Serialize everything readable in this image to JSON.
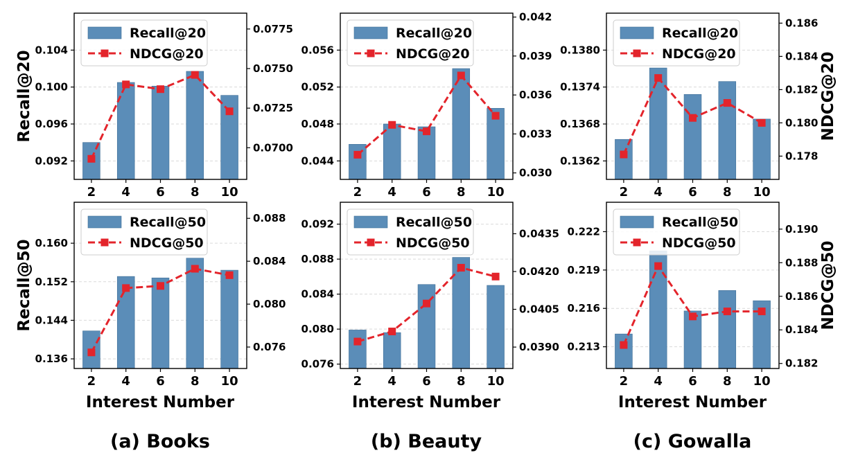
{
  "colors": {
    "bar": "#5b8db8",
    "bar_edge": "#3f6e96",
    "line": "#e3242b",
    "grid": "#d9d9d9"
  },
  "x_axis_label": "Interest Number",
  "captions": [
    "(a) Books",
    "(b) Beauty",
    "(c) Gowalla"
  ],
  "left_axis_titles": [
    "Recall@20",
    "Recall@50"
  ],
  "right_axis_titles": [
    "NDCG@20",
    "NDCG@50"
  ],
  "chart_data": [
    {
      "type": "bar+line",
      "dataset": "Books",
      "metric_k": 20,
      "x": [
        2,
        4,
        6,
        8,
        10
      ],
      "series": [
        {
          "name": "Recall@20",
          "kind": "bar",
          "axis": "left",
          "values": [
            0.094,
            0.1005,
            0.1001,
            0.1017,
            0.0991
          ]
        },
        {
          "name": "NDCG@20",
          "kind": "line",
          "axis": "right",
          "values": [
            0.0693,
            0.074,
            0.0737,
            0.0746,
            0.0723
          ]
        }
      ],
      "ylim_left": [
        0.09,
        0.108
      ],
      "yticks_left": [
        "0.092",
        "0.096",
        "0.100",
        "0.104"
      ],
      "ylim_right": [
        0.068,
        0.0785
      ],
      "yticks_right": [
        "0.0700",
        "0.0725",
        "0.0750",
        "0.0775"
      ],
      "xticks": [
        "2",
        "4",
        "6",
        "8",
        "10"
      ],
      "grid": true,
      "legend": "top-left"
    },
    {
      "type": "bar+line",
      "dataset": "Beauty",
      "metric_k": 20,
      "x": [
        2,
        4,
        6,
        8,
        10
      ],
      "series": [
        {
          "name": "Recall@20",
          "kind": "bar",
          "axis": "left",
          "values": [
            0.0458,
            0.048,
            0.0477,
            0.054,
            0.0497
          ]
        },
        {
          "name": "NDCG@20",
          "kind": "line",
          "axis": "right",
          "values": [
            0.0314,
            0.0337,
            0.0332,
            0.0375,
            0.0344
          ]
        }
      ],
      "ylim_left": [
        0.042,
        0.06
      ],
      "yticks_left": [
        "0.044",
        "0.048",
        "0.052",
        "0.056"
      ],
      "ylim_right": [
        0.0295,
        0.0423
      ],
      "yticks_right": [
        "0.030",
        "0.033",
        "0.036",
        "0.039",
        "0.042"
      ],
      "xticks": [
        "2",
        "4",
        "6",
        "8",
        "10"
      ],
      "grid": true,
      "legend": "top-left"
    },
    {
      "type": "bar+line",
      "dataset": "Gowalla",
      "metric_k": 20,
      "x": [
        2,
        4,
        6,
        8,
        10
      ],
      "series": [
        {
          "name": "Recall@20",
          "kind": "bar",
          "axis": "left",
          "values": [
            0.13655,
            0.13771,
            0.13728,
            0.13749,
            0.13688
          ]
        },
        {
          "name": "NDCG@20",
          "kind": "line",
          "axis": "right",
          "values": [
            0.1781,
            0.1827,
            0.1803,
            0.1812,
            0.18
          ]
        }
      ],
      "ylim_left": [
        0.1359,
        0.1386
      ],
      "yticks_left": [
        "0.1362",
        "0.1368",
        "0.1374",
        "0.1380"
      ],
      "ylim_right": [
        0.1766,
        0.1866
      ],
      "yticks_right": [
        "0.178",
        "0.180",
        "0.182",
        "0.184",
        "0.186"
      ],
      "xticks": [
        "2",
        "4",
        "6",
        "8",
        "10"
      ],
      "grid": true,
      "legend": "top-left"
    },
    {
      "type": "bar+line",
      "dataset": "Books",
      "metric_k": 50,
      "x": [
        2,
        4,
        6,
        8,
        10
      ],
      "series": [
        {
          "name": "Recall@50",
          "kind": "bar",
          "axis": "left",
          "values": [
            0.1418,
            0.1531,
            0.1528,
            0.1569,
            0.1544
          ]
        },
        {
          "name": "NDCG@50",
          "kind": "line",
          "axis": "right",
          "values": [
            0.0755,
            0.0815,
            0.0817,
            0.0833,
            0.0827
          ]
        }
      ],
      "ylim_left": [
        0.134,
        0.1685
      ],
      "yticks_left": [
        "0.136",
        "0.144",
        "0.152",
        "0.160"
      ],
      "ylim_right": [
        0.074,
        0.0895
      ],
      "yticks_right": [
        "0.076",
        "0.080",
        "0.084",
        "0.088"
      ],
      "xticks": [
        "2",
        "4",
        "6",
        "8",
        "10"
      ],
      "grid": true,
      "legend": "top-left"
    },
    {
      "type": "bar+line",
      "dataset": "Beauty",
      "metric_k": 50,
      "x": [
        2,
        4,
        6,
        8,
        10
      ],
      "series": [
        {
          "name": "Recall@50",
          "kind": "bar",
          "axis": "left",
          "values": [
            0.0799,
            0.0796,
            0.0851,
            0.0882,
            0.085
          ]
        },
        {
          "name": "NDCG@50",
          "kind": "line",
          "axis": "right",
          "values": [
            0.03922,
            0.03962,
            0.04073,
            0.04215,
            0.0418
          ]
        }
      ],
      "ylim_left": [
        0.0755,
        0.0945
      ],
      "yticks_left": [
        "0.076",
        "0.080",
        "0.084",
        "0.088",
        "0.092"
      ],
      "ylim_right": [
        0.03815,
        0.04475
      ],
      "yticks_right": [
        "0.0390",
        "0.0405",
        "0.0420",
        "0.0435"
      ],
      "xticks": [
        "2",
        "4",
        "6",
        "8",
        "10"
      ],
      "grid": true,
      "legend": "top-left"
    },
    {
      "type": "bar+line",
      "dataset": "Gowalla",
      "metric_k": 50,
      "x": [
        2,
        4,
        6,
        8,
        10
      ],
      "series": [
        {
          "name": "Recall@50",
          "kind": "bar",
          "axis": "left",
          "values": [
            0.214,
            0.2205,
            0.2158,
            0.2174,
            0.2166
          ]
        },
        {
          "name": "NDCG@50",
          "kind": "line",
          "axis": "right",
          "values": [
            0.1831,
            0.1878,
            0.1848,
            0.1851,
            0.1851
          ]
        }
      ],
      "ylim_left": [
        0.2113,
        0.2243
      ],
      "yticks_left": [
        "0.213",
        "0.216",
        "0.219",
        "0.222"
      ],
      "ylim_right": [
        0.1817,
        0.1916
      ],
      "yticks_right": [
        "0.182",
        "0.184",
        "0.186",
        "0.188",
        "0.190"
      ],
      "xticks": [
        "2",
        "4",
        "6",
        "8",
        "10"
      ],
      "grid": true,
      "legend": "top-left"
    }
  ]
}
